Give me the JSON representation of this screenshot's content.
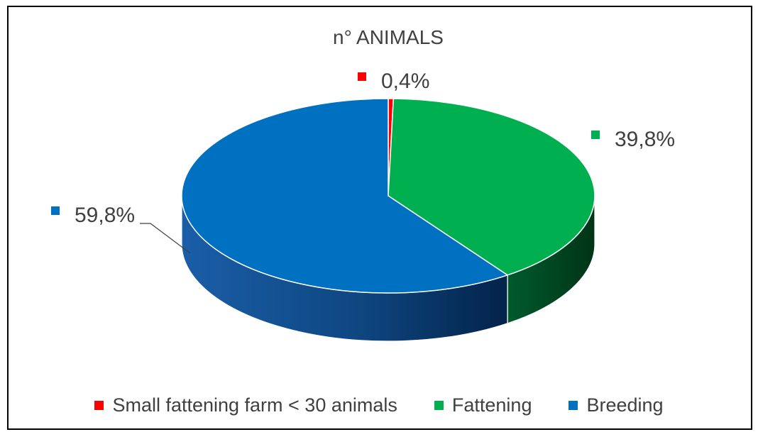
{
  "chart_data": {
    "type": "pie",
    "title": "n° ANIMALS",
    "categories": [
      "Small fattening farm < 30 animals",
      "Fattening",
      "Breeding"
    ],
    "values": [
      0.4,
      39.8,
      59.8
    ],
    "labels": [
      "0,4%",
      "39,8%",
      "59,8%"
    ],
    "colors": [
      "#ff0000",
      "#00b050",
      "#0070c0"
    ],
    "legend_position": "bottom",
    "style": "3d"
  }
}
